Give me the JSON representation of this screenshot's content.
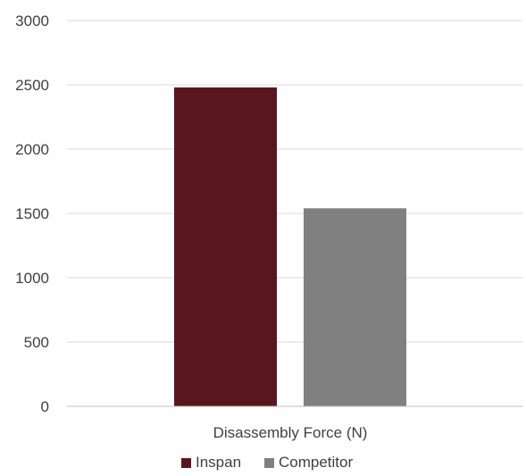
{
  "chart_data": {
    "type": "bar",
    "categories": [
      "Disassembly Force (N)"
    ],
    "series": [
      {
        "name": "Inspan",
        "values": [
          2480
        ],
        "color": "#5a161e"
      },
      {
        "name": "Competitor",
        "values": [
          1540
        ],
        "color": "#808080"
      }
    ],
    "title": "",
    "xlabel": "",
    "ylabel": "",
    "ylim": [
      0,
      3000
    ],
    "yticks": [
      "0",
      "500",
      "1000",
      "1500",
      "2000",
      "2500",
      "3000"
    ],
    "grid": true,
    "legend_position": "bottom"
  }
}
